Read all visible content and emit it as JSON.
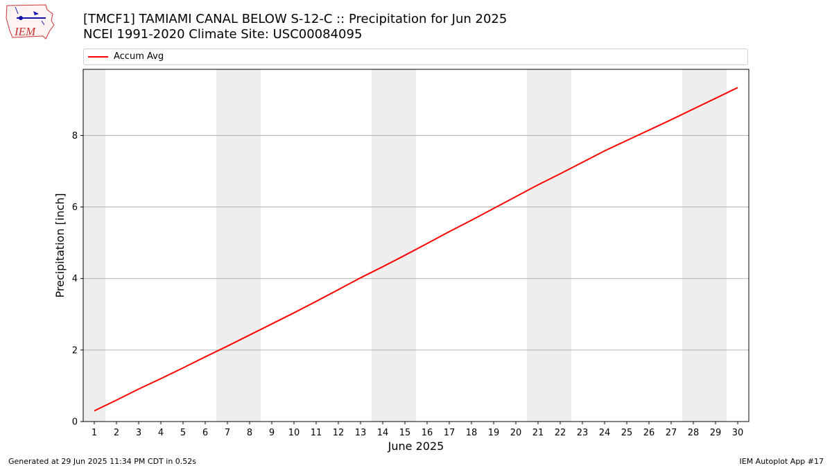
{
  "title_line1": "[TMCF1] TAMIAMI CANAL BELOW S-12-C :: Precipitation for Jun 2025",
  "title_line2": "NCEI 1991-2020 Climate Site: USC00084095",
  "logo_text": "IEM",
  "footer_left": "Generated at 29 Jun 2025 11:34 PM CDT in 0.52s",
  "footer_right": "IEM Autoplot App #17",
  "colors": {
    "series": "#ff0000",
    "weekend_band": "#eeeeee",
    "grid": "#b0b0b0"
  },
  "chart_data": {
    "type": "line",
    "xlabel": "June 2025",
    "ylabel": "Precipitation [inch]",
    "xlim": [
      0.5,
      30.5
    ],
    "ylim": [
      0,
      9.85
    ],
    "yticks": [
      0,
      2,
      4,
      6,
      8
    ],
    "grid": "horizontal",
    "legend_position": "top",
    "weekend_bands": [
      [
        0.5,
        1.5
      ],
      [
        6.5,
        8.5
      ],
      [
        13.5,
        15.5
      ],
      [
        20.5,
        22.5
      ],
      [
        27.5,
        29.5
      ]
    ],
    "x": [
      1,
      2,
      3,
      4,
      5,
      6,
      7,
      8,
      9,
      10,
      11,
      12,
      13,
      14,
      15,
      16,
      17,
      18,
      19,
      20,
      21,
      22,
      23,
      24,
      25,
      26,
      27,
      28,
      29,
      30
    ],
    "series": [
      {
        "name": "Accum Avg",
        "color": "#ff0000",
        "values": [
          0.3,
          0.6,
          0.91,
          1.2,
          1.5,
          1.81,
          2.11,
          2.42,
          2.73,
          3.04,
          3.36,
          3.69,
          4.02,
          4.33,
          4.65,
          4.98,
          5.31,
          5.63,
          5.96,
          6.29,
          6.62,
          6.93,
          7.25,
          7.57,
          7.86,
          8.15,
          8.44,
          8.74,
          9.04,
          9.34
        ]
      }
    ]
  }
}
